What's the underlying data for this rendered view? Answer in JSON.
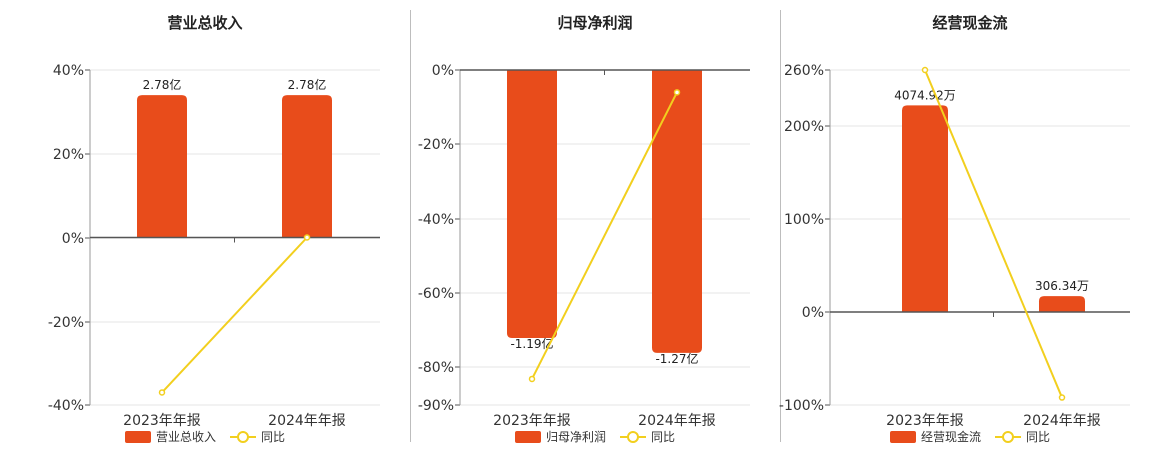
{
  "colors": {
    "bar": "#e84c1b",
    "line": "#f2cf1e",
    "grid": "#e6e6e6",
    "axis": "#555555"
  },
  "chart_data": [
    {
      "type": "bar",
      "title": "营业总收入",
      "categories": [
        "2023年年报",
        "2024年年报"
      ],
      "series": [
        {
          "name": "营业总收入",
          "values": [
            2.78,
            2.78
          ],
          "value_labels": [
            "2.78亿",
            "2.78亿"
          ],
          "bar_height_pct": [
            34,
            34
          ]
        },
        {
          "name": "同比",
          "type": "line",
          "values": [
            -37,
            0
          ]
        }
      ],
      "y_ticks": [
        "40%",
        "20%",
        "0%",
        "-20%",
        "-40%"
      ],
      "ylim": [
        -40,
        40
      ],
      "legend": "bottom"
    },
    {
      "type": "bar",
      "title": "归母净利润",
      "categories": [
        "2023年年报",
        "2024年年报"
      ],
      "series": [
        {
          "name": "归母净利润",
          "values": [
            -1.19,
            -1.27
          ],
          "value_labels": [
            "-1.19亿",
            "-1.27亿"
          ],
          "bar_height_pct": [
            -72,
            -76
          ]
        },
        {
          "name": "同比",
          "type": "line",
          "values": [
            -83,
            -6
          ]
        }
      ],
      "y_ticks": [
        "0%",
        "-20%",
        "-40%",
        "-60%",
        "-80%",
        "-90%"
      ],
      "ylim": [
        -90,
        0
      ],
      "legend": "bottom"
    },
    {
      "type": "bar",
      "title": "经营现金流",
      "categories": [
        "2023年年报",
        "2024年年报"
      ],
      "series": [
        {
          "name": "经营现金流",
          "values": [
            4074.92,
            306.34
          ],
          "value_labels": [
            "4074.92万",
            "306.34万"
          ],
          "bar_height_pct": [
            222,
            17
          ]
        },
        {
          "name": "同比",
          "type": "line",
          "values": [
            260,
            -92
          ]
        }
      ],
      "y_ticks": [
        "260%",
        "200%",
        "100%",
        "0%",
        "-100%"
      ],
      "ylim": [
        -100,
        260
      ],
      "legend": "bottom"
    }
  ]
}
